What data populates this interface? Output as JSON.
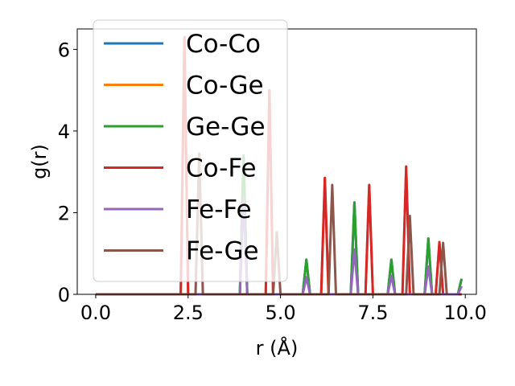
{
  "chart_data": {
    "type": "line",
    "title": "",
    "xlabel": "r (Å)",
    "ylabel": "g(r)",
    "xlim": [
      -0.5,
      10.3
    ],
    "ylim": [
      0,
      6.5
    ],
    "xticks": [
      0.0,
      2.5,
      5.0,
      7.5,
      10.0
    ],
    "xtick_labels": [
      "0.0",
      "2.5",
      "5.0",
      "7.5",
      "10.0"
    ],
    "yticks": [
      0,
      2,
      4,
      6
    ],
    "ytick_labels": [
      "0",
      "2",
      "4",
      "6"
    ],
    "grid": false,
    "legend_position": "top-left",
    "peak_halfwidth": 0.1,
    "series": [
      {
        "name": "Co-Co",
        "color": "#1f77b4",
        "baseline_end": 9.9,
        "peaks": [
          [
            4.0,
            3.4
          ],
          [
            5.7,
            0.85
          ],
          [
            7.0,
            2.25
          ],
          [
            8.0,
            0.85
          ],
          [
            9.0,
            1.37
          ],
          [
            9.9,
            0.38
          ]
        ]
      },
      {
        "name": "Co-Ge",
        "color": "#ff7f0e",
        "baseline_end": 9.9,
        "peaks": [
          [
            2.4,
            6.3
          ],
          [
            4.7,
            5.0
          ],
          [
            6.2,
            2.85
          ],
          [
            7.4,
            2.68
          ],
          [
            8.4,
            3.13
          ],
          [
            9.3,
            1.28
          ]
        ]
      },
      {
        "name": "Ge-Ge",
        "color": "#2ca02c",
        "baseline_end": 9.9,
        "peaks": [
          [
            4.0,
            3.4
          ],
          [
            5.7,
            0.85
          ],
          [
            7.0,
            2.25
          ],
          [
            8.0,
            0.85
          ],
          [
            9.0,
            1.37
          ],
          [
            9.9,
            0.38
          ]
        ]
      },
      {
        "name": "Co-Fe",
        "color": "#d62728",
        "baseline_end": 9.9,
        "peaks": [
          [
            2.4,
            6.3
          ],
          [
            4.7,
            5.0
          ],
          [
            6.2,
            2.85
          ],
          [
            7.4,
            2.68
          ],
          [
            8.4,
            3.13
          ],
          [
            9.3,
            1.28
          ]
        ]
      },
      {
        "name": "Fe-Fe",
        "color": "#9467bd",
        "baseline_end": 9.9,
        "peaks": [
          [
            4.0,
            2.4
          ],
          [
            5.7,
            0.42
          ],
          [
            7.0,
            1.1
          ],
          [
            8.0,
            0.45
          ],
          [
            9.0,
            0.68
          ],
          [
            9.9,
            0.2
          ]
        ]
      },
      {
        "name": "Fe-Ge",
        "color": "#8c564b",
        "baseline_end": 9.5,
        "peaks": [
          [
            2.8,
            3.45
          ],
          [
            4.9,
            1.52
          ],
          [
            6.4,
            2.68
          ],
          [
            8.5,
            1.92
          ],
          [
            9.4,
            1.26
          ]
        ]
      }
    ]
  }
}
